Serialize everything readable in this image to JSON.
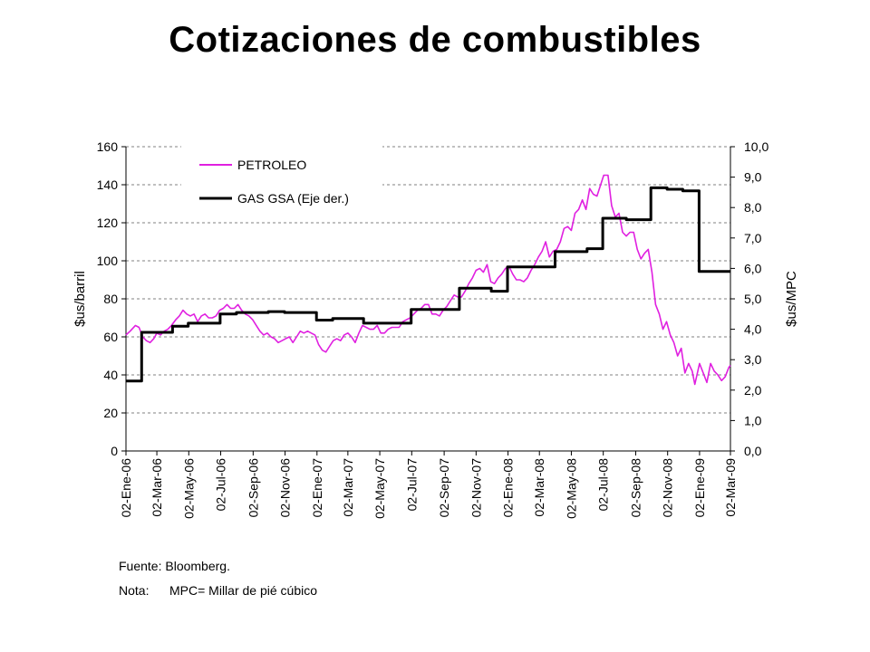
{
  "page": {
    "title": "Cotizaciones de combustibles"
  },
  "notes": {
    "source": "Fuente: Bloomberg.",
    "note_label": "Nota:",
    "note_text": "MPC= Millar de pié cúbico"
  },
  "chart_data": {
    "type": "line",
    "title": "Cotizaciones de combustibles",
    "ylabel": "$us/barril",
    "y2label": "$us/MPC",
    "ylim": [
      0,
      160
    ],
    "y2lim": [
      0,
      10
    ],
    "yticks": [
      "0",
      "20",
      "40",
      "60",
      "80",
      "100",
      "120",
      "140",
      "160"
    ],
    "y2ticks": [
      "0,0",
      "1,0",
      "2,0",
      "3,0",
      "4,0",
      "5,0",
      "6,0",
      "7,0",
      "8,0",
      "9,0",
      "10,0"
    ],
    "xlim": [
      "2006-01-02",
      "2009-03-02"
    ],
    "xticks": [
      {
        "date": "2006-01-02",
        "label": "02-Ene-06"
      },
      {
        "date": "2006-03-02",
        "label": "02-Mar-06"
      },
      {
        "date": "2006-05-02",
        "label": "02-May-06"
      },
      {
        "date": "2006-07-02",
        "label": "02-Jul-06"
      },
      {
        "date": "2006-09-02",
        "label": "02-Sep-06"
      },
      {
        "date": "2006-11-02",
        "label": "02-Nov-06"
      },
      {
        "date": "2007-01-02",
        "label": "02-Ene-07"
      },
      {
        "date": "2007-03-02",
        "label": "02-Mar-07"
      },
      {
        "date": "2007-05-02",
        "label": "02-May-07"
      },
      {
        "date": "2007-07-02",
        "label": "02-Jul-07"
      },
      {
        "date": "2007-09-02",
        "label": "02-Sep-07"
      },
      {
        "date": "2007-11-02",
        "label": "02-Nov-07"
      },
      {
        "date": "2008-01-02",
        "label": "02-Ene-08"
      },
      {
        "date": "2008-03-02",
        "label": "02-Mar-08"
      },
      {
        "date": "2008-05-02",
        "label": "02-May-08"
      },
      {
        "date": "2008-07-02",
        "label": "02-Jul-08"
      },
      {
        "date": "2008-09-02",
        "label": "02-Sep-08"
      },
      {
        "date": "2008-11-02",
        "label": "02-Nov-08"
      },
      {
        "date": "2009-01-02",
        "label": "02-Ene-09"
      },
      {
        "date": "2009-03-02",
        "label": "02-Mar-09"
      }
    ],
    "grid": true,
    "legend_position": "top-left",
    "series": [
      {
        "name": "PETROLEO",
        "axis": "left",
        "color": "#e020e0",
        "points": [
          [
            "2006-01-02",
            61
          ],
          [
            "2006-01-10",
            63
          ],
          [
            "2006-01-20",
            66
          ],
          [
            "2006-01-27",
            65
          ],
          [
            "2006-02-03",
            60
          ],
          [
            "2006-02-10",
            58
          ],
          [
            "2006-02-17",
            57
          ],
          [
            "2006-02-24",
            59
          ],
          [
            "2006-03-02",
            62
          ],
          [
            "2006-03-09",
            61
          ],
          [
            "2006-03-16",
            63
          ],
          [
            "2006-03-23",
            64
          ],
          [
            "2006-03-30",
            66
          ],
          [
            "2006-04-07",
            69
          ],
          [
            "2006-04-14",
            71
          ],
          [
            "2006-04-21",
            74
          ],
          [
            "2006-04-28",
            72
          ],
          [
            "2006-05-05",
            71
          ],
          [
            "2006-05-12",
            72
          ],
          [
            "2006-05-19",
            68
          ],
          [
            "2006-05-26",
            71
          ],
          [
            "2006-06-02",
            72
          ],
          [
            "2006-06-09",
            70
          ],
          [
            "2006-06-16",
            70
          ],
          [
            "2006-06-23",
            71
          ],
          [
            "2006-06-30",
            74
          ],
          [
            "2006-07-07",
            75
          ],
          [
            "2006-07-14",
            77
          ],
          [
            "2006-07-21",
            75
          ],
          [
            "2006-07-28",
            75
          ],
          [
            "2006-08-04",
            77
          ],
          [
            "2006-08-11",
            74
          ],
          [
            "2006-08-18",
            72
          ],
          [
            "2006-08-25",
            71
          ],
          [
            "2006-09-01",
            69
          ],
          [
            "2006-09-08",
            66
          ],
          [
            "2006-09-15",
            63
          ],
          [
            "2006-09-22",
            61
          ],
          [
            "2006-09-29",
            62
          ],
          [
            "2006-10-06",
            60
          ],
          [
            "2006-10-13",
            59
          ],
          [
            "2006-10-20",
            57
          ],
          [
            "2006-10-27",
            58
          ],
          [
            "2006-11-03",
            59
          ],
          [
            "2006-11-10",
            60
          ],
          [
            "2006-11-17",
            57
          ],
          [
            "2006-11-24",
            60
          ],
          [
            "2006-12-01",
            63
          ],
          [
            "2006-12-08",
            62
          ],
          [
            "2006-12-15",
            63
          ],
          [
            "2006-12-22",
            62
          ],
          [
            "2006-12-29",
            61
          ],
          [
            "2007-01-05",
            56
          ],
          [
            "2007-01-12",
            53
          ],
          [
            "2007-01-19",
            52
          ],
          [
            "2007-01-26",
            55
          ],
          [
            "2007-02-02",
            58
          ],
          [
            "2007-02-09",
            59
          ],
          [
            "2007-02-16",
            58
          ],
          [
            "2007-02-23",
            61
          ],
          [
            "2007-03-02",
            62
          ],
          [
            "2007-03-09",
            60
          ],
          [
            "2007-03-16",
            57
          ],
          [
            "2007-03-23",
            62
          ],
          [
            "2007-03-30",
            66
          ],
          [
            "2007-04-06",
            65
          ],
          [
            "2007-04-13",
            64
          ],
          [
            "2007-04-20",
            64
          ],
          [
            "2007-04-27",
            66
          ],
          [
            "2007-05-04",
            62
          ],
          [
            "2007-05-11",
            62
          ],
          [
            "2007-05-18",
            64
          ],
          [
            "2007-05-25",
            65
          ],
          [
            "2007-06-01",
            65
          ],
          [
            "2007-06-08",
            65
          ],
          [
            "2007-06-15",
            68
          ],
          [
            "2007-06-22",
            69
          ],
          [
            "2007-06-29",
            70
          ],
          [
            "2007-07-06",
            72
          ],
          [
            "2007-07-13",
            74
          ],
          [
            "2007-07-20",
            75
          ],
          [
            "2007-07-27",
            77
          ],
          [
            "2007-08-03",
            77
          ],
          [
            "2007-08-10",
            72
          ],
          [
            "2007-08-17",
            72
          ],
          [
            "2007-08-24",
            71
          ],
          [
            "2007-08-31",
            74
          ],
          [
            "2007-09-07",
            76
          ],
          [
            "2007-09-14",
            79
          ],
          [
            "2007-09-21",
            82
          ],
          [
            "2007-09-28",
            81
          ],
          [
            "2007-10-05",
            81
          ],
          [
            "2007-10-12",
            84
          ],
          [
            "2007-10-19",
            88
          ],
          [
            "2007-10-26",
            91
          ],
          [
            "2007-11-02",
            95
          ],
          [
            "2007-11-09",
            96
          ],
          [
            "2007-11-16",
            94
          ],
          [
            "2007-11-23",
            98
          ],
          [
            "2007-11-30",
            89
          ],
          [
            "2007-12-07",
            88
          ],
          [
            "2007-12-14",
            91
          ],
          [
            "2007-12-21",
            93
          ],
          [
            "2007-12-28",
            96
          ],
          [
            "2008-01-04",
            97
          ],
          [
            "2008-01-11",
            93
          ],
          [
            "2008-01-18",
            90
          ],
          [
            "2008-01-25",
            90
          ],
          [
            "2008-02-01",
            89
          ],
          [
            "2008-02-08",
            91
          ],
          [
            "2008-02-15",
            95
          ],
          [
            "2008-02-22",
            98
          ],
          [
            "2008-02-29",
            102
          ],
          [
            "2008-03-07",
            105
          ],
          [
            "2008-03-14",
            110
          ],
          [
            "2008-03-21",
            102
          ],
          [
            "2008-03-28",
            105
          ],
          [
            "2008-04-04",
            106
          ],
          [
            "2008-04-11",
            110
          ],
          [
            "2008-04-18",
            117
          ],
          [
            "2008-04-25",
            118
          ],
          [
            "2008-05-02",
            116
          ],
          [
            "2008-05-09",
            125
          ],
          [
            "2008-05-16",
            127
          ],
          [
            "2008-05-23",
            132
          ],
          [
            "2008-05-30",
            127
          ],
          [
            "2008-06-06",
            138
          ],
          [
            "2008-06-13",
            135
          ],
          [
            "2008-06-20",
            134
          ],
          [
            "2008-06-27",
            140
          ],
          [
            "2008-07-03",
            145
          ],
          [
            "2008-07-11",
            145
          ],
          [
            "2008-07-18",
            129
          ],
          [
            "2008-07-25",
            123
          ],
          [
            "2008-08-01",
            125
          ],
          [
            "2008-08-08",
            115
          ],
          [
            "2008-08-15",
            113
          ],
          [
            "2008-08-22",
            115
          ],
          [
            "2008-08-29",
            115
          ],
          [
            "2008-09-05",
            106
          ],
          [
            "2008-09-12",
            101
          ],
          [
            "2008-09-19",
            104
          ],
          [
            "2008-09-26",
            106
          ],
          [
            "2008-10-03",
            94
          ],
          [
            "2008-10-10",
            77
          ],
          [
            "2008-10-17",
            72
          ],
          [
            "2008-10-24",
            64
          ],
          [
            "2008-10-31",
            68
          ],
          [
            "2008-11-07",
            61
          ],
          [
            "2008-11-14",
            57
          ],
          [
            "2008-11-21",
            50
          ],
          [
            "2008-11-28",
            54
          ],
          [
            "2008-12-05",
            41
          ],
          [
            "2008-12-12",
            46
          ],
          [
            "2008-12-19",
            42
          ],
          [
            "2008-12-24",
            35
          ],
          [
            "2009-01-02",
            46
          ],
          [
            "2009-01-09",
            41
          ],
          [
            "2009-01-16",
            36
          ],
          [
            "2009-01-23",
            46
          ],
          [
            "2009-01-30",
            42
          ],
          [
            "2009-02-06",
            40
          ],
          [
            "2009-02-13",
            37
          ],
          [
            "2009-02-20",
            39
          ],
          [
            "2009-02-27",
            44
          ],
          [
            "2009-03-02",
            45
          ]
        ]
      },
      {
        "name": "GAS GSA (Eje der.)",
        "axis": "right",
        "step": true,
        "color": "#000000",
        "points": [
          [
            "2006-01-02",
            2.3
          ],
          [
            "2006-02-01",
            3.9
          ],
          [
            "2006-04-01",
            4.1
          ],
          [
            "2006-05-01",
            4.2
          ],
          [
            "2006-07-01",
            4.5
          ],
          [
            "2006-08-01",
            4.55
          ],
          [
            "2006-10-01",
            4.58
          ],
          [
            "2006-11-01",
            4.55
          ],
          [
            "2007-01-01",
            4.3
          ],
          [
            "2007-02-01",
            4.35
          ],
          [
            "2007-04-01",
            4.2
          ],
          [
            "2007-05-01",
            4.2
          ],
          [
            "2007-07-01",
            4.65
          ],
          [
            "2007-10-01",
            5.35
          ],
          [
            "2007-12-01",
            5.25
          ],
          [
            "2008-01-01",
            6.05
          ],
          [
            "2008-04-01",
            6.55
          ],
          [
            "2008-06-01",
            6.65
          ],
          [
            "2008-07-01",
            7.65
          ],
          [
            "2008-08-15",
            7.6
          ],
          [
            "2008-10-01",
            8.65
          ],
          [
            "2008-11-01",
            8.6
          ],
          [
            "2008-12-01",
            8.55
          ],
          [
            "2009-01-01",
            5.9
          ],
          [
            "2009-03-02",
            5.9
          ]
        ]
      }
    ]
  }
}
